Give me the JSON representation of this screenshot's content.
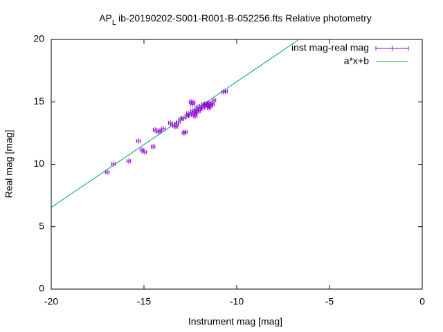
{
  "chart_data": {
    "type": "scatter",
    "title": [
      "AP",
      "L",
      "ib-20190202-S001-R001-B-052256.fts Relative photometry"
    ],
    "x_label": "Instrument mag [mag]",
    "y_label": "Real mag [mag]",
    "xlim": [
      -20,
      0
    ],
    "xticks": [
      -20,
      -15,
      -10,
      -5,
      0
    ],
    "ylim": [
      0,
      20
    ],
    "yticks": [
      0,
      5,
      10,
      15,
      20
    ],
    "legend": "top-right",
    "series": [
      {
        "name": "inst mag-real mag",
        "type": "xerrorbars",
        "color": "#9400d3",
        "x": [
          -16.98,
          -16.64,
          -15.82,
          -15.3,
          -15.11,
          -14.96,
          -14.51,
          -14.4,
          -14.22,
          -14.14,
          -13.96,
          -13.58,
          -13.47,
          -13.36,
          -13.25,
          -13.28,
          -13.13,
          -13.02,
          -12.87,
          -12.84,
          -12.76,
          -12.69,
          -12.54,
          -12.61,
          -12.46,
          -12.35,
          -12.39,
          -12.28,
          -12.31,
          -12.2,
          -12.13,
          -12.09,
          -12.05,
          -11.98,
          -11.9,
          -11.83,
          -11.79,
          -11.72,
          -11.64,
          -11.57,
          -11.49,
          -11.42,
          -11.49,
          -11.38,
          -11.31,
          -11.23,
          -10.71,
          -10.6,
          -12.39,
          -12.24
        ],
        "values": [
          9.36,
          10.03,
          10.25,
          11.86,
          11.14,
          10.97,
          11.41,
          12.74,
          12.58,
          12.69,
          12.85,
          13.3,
          13.19,
          13.07,
          13.24,
          13.02,
          13.41,
          13.63,
          13.68,
          12.52,
          12.58,
          13.85,
          13.96,
          14.07,
          15.01,
          14.96,
          14.29,
          14.02,
          14.18,
          14.4,
          14.18,
          14.57,
          14.29,
          14.46,
          14.68,
          14.52,
          14.79,
          14.74,
          14.85,
          14.63,
          14.9,
          14.68,
          14.52,
          14.79,
          14.85,
          15.12,
          15.79,
          15.84,
          14.79,
          13.85
        ],
        "xerr": [
          0.1,
          0.1,
          0.1,
          0.1,
          0.1,
          0.1,
          0.1,
          0.1,
          0.1,
          0.1,
          0.1,
          0.1,
          0.1,
          0.1,
          0.1,
          0.1,
          0.1,
          0.1,
          0.1,
          0.1,
          0.1,
          0.1,
          0.1,
          0.1,
          0.1,
          0.1,
          0.1,
          0.1,
          0.1,
          0.1,
          0.1,
          0.1,
          0.1,
          0.1,
          0.1,
          0.1,
          0.1,
          0.1,
          0.1,
          0.1,
          0.1,
          0.1,
          0.1,
          0.1,
          0.1,
          0.1,
          0.1,
          0.1,
          0.1,
          0.1
        ]
      },
      {
        "name": "a*x+b",
        "type": "line",
        "color": "#009e73",
        "x": [
          -20,
          -6.64
        ],
        "values": [
          6.54,
          20
        ]
      }
    ]
  }
}
